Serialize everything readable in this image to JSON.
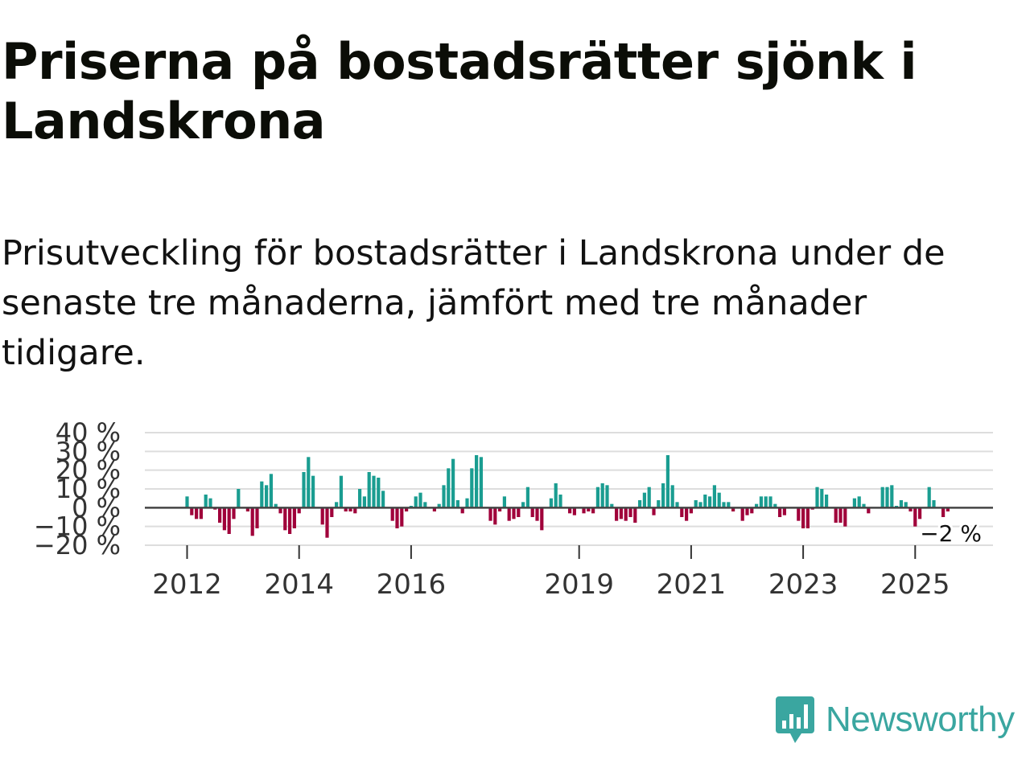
{
  "title": "Priserna på bostadsrätter sjönk i Landskrona",
  "subtitle": "Prisutveckling för bostadsrätter i Landskrona under de senaste tre månaderna, jämfört med tre månader tidigare.",
  "logo_text": "Newsworthy",
  "colors": {
    "positive": "#1a9d91",
    "negative": "#a0003a",
    "grid": "#dddddd",
    "zero": "#444444",
    "logo": "#3aa6a0"
  },
  "chart_data": {
    "type": "bar",
    "title": "",
    "xlabel": "",
    "ylabel": "",
    "ylim": [
      -20,
      40
    ],
    "yticks": [
      {
        "value": 40,
        "label": "40 %"
      },
      {
        "value": 30,
        "label": "30 %"
      },
      {
        "value": 20,
        "label": "20 %"
      },
      {
        "value": 10,
        "label": "10 %"
      },
      {
        "value": 0,
        "label": "0 %"
      },
      {
        "value": -10,
        "label": "−10 %"
      },
      {
        "value": -20,
        "label": "−20 %"
      }
    ],
    "xticks": [
      {
        "index": 0,
        "label": "2012"
      },
      {
        "index": 24,
        "label": "2014"
      },
      {
        "index": 48,
        "label": "2016"
      },
      {
        "index": 84,
        "label": "2019"
      },
      {
        "index": 108,
        "label": "2021"
      },
      {
        "index": 132,
        "label": "2023"
      },
      {
        "index": 156,
        "label": "2025"
      }
    ],
    "last_value_label": "−2 %",
    "values": [
      6,
      -4,
      -6,
      -6,
      7,
      5,
      -1,
      -8,
      -12,
      -14,
      -6,
      10,
      0,
      -2,
      -15,
      -11,
      14,
      12,
      18,
      2,
      -3,
      -12,
      -14,
      -11,
      -3,
      19,
      27,
      17,
      0,
      -9,
      -16,
      -5,
      3,
      17,
      -2,
      -2,
      -3,
      10,
      6,
      19,
      17,
      16,
      9,
      0,
      -7,
      -11,
      -10,
      -2,
      1,
      6,
      8,
      3,
      0,
      -2,
      2,
      12,
      21,
      26,
      4,
      -3,
      5,
      21,
      28,
      27,
      0,
      -7,
      -9,
      -2,
      6,
      -7,
      -6,
      -5,
      3,
      11,
      -5,
      -7,
      -12,
      0,
      5,
      13,
      7,
      0,
      -3,
      -4,
      0,
      -3,
      -2,
      -3,
      11,
      13,
      12,
      2,
      -7,
      -6,
      -7,
      -5,
      -8,
      4,
      8,
      11,
      -4,
      4,
      13,
      28,
      12,
      3,
      -5,
      -7,
      -3,
      4,
      3,
      7,
      6,
      12,
      8,
      3,
      3,
      -2,
      0,
      -7,
      -4,
      -3,
      2,
      6,
      6,
      6,
      2,
      -5,
      -4,
      0,
      0,
      -7,
      -11,
      -11,
      -1,
      11,
      10,
      7,
      0,
      -8,
      -8,
      -10,
      0,
      5,
      6,
      2,
      -3,
      0,
      0,
      11,
      11,
      12,
      1,
      4,
      3,
      -2,
      -10,
      -6,
      0,
      11,
      4,
      0,
      -5,
      -2
    ]
  }
}
